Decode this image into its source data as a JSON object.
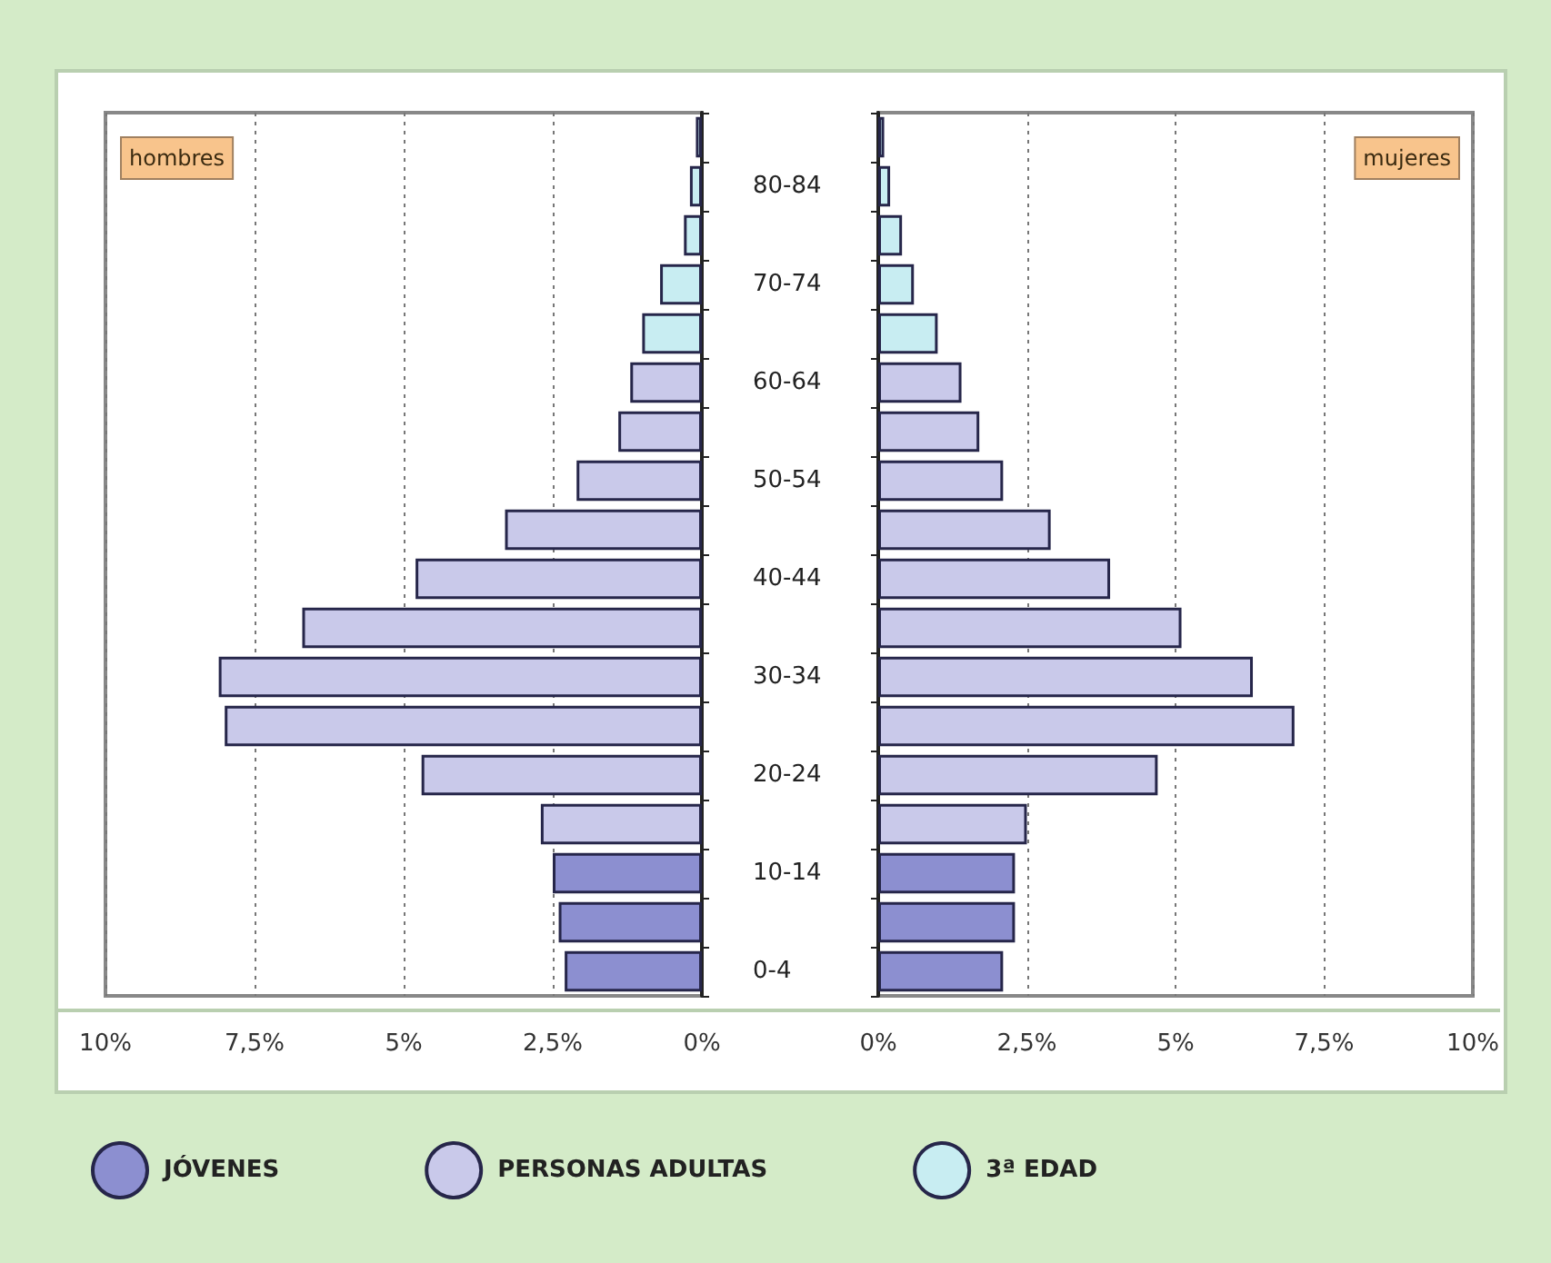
{
  "chart_data": [
    {
      "type": "bar",
      "orientation": "horizontal",
      "stacked": true,
      "grid": "x",
      "legend": "bottom",
      "annotations": [
        "hombres"
      ],
      "categories": [
        null,
        "80-84",
        null,
        "70-74",
        null,
        "60-64",
        null,
        "50-54",
        null,
        "40-44",
        null,
        "30-34",
        null,
        "20-24",
        null,
        "10-14",
        null,
        "0-4"
      ],
      "xlim": [
        10,
        0
      ],
      "xticks": [
        {
          "value": 10,
          "label": "10%"
        },
        {
          "value": 7.5,
          "label": "7,5%"
        },
        {
          "value": 5,
          "label": "5%"
        },
        {
          "value": 2.5,
          "label": "2,5%"
        },
        {
          "value": 0,
          "label": "0%"
        }
      ],
      "series": [
        {
          "name": "JÓVENES",
          "color": "#8c8fd0",
          "values": [
            null,
            null,
            null,
            null,
            null,
            null,
            null,
            null,
            null,
            null,
            null,
            null,
            null,
            null,
            null,
            2.5,
            2.4,
            2.3
          ]
        },
        {
          "name": "PERSONAS ADULTAS",
          "color": "#c9c9ea",
          "values": [
            null,
            null,
            null,
            null,
            null,
            1.2,
            1.4,
            2.1,
            3.3,
            4.8,
            6.7,
            8.1,
            8.0,
            4.7,
            2.7,
            null,
            null,
            null
          ]
        },
        {
          "name": "3ª EDAD",
          "color": "#c8edf2",
          "values": [
            0.1,
            0.2,
            0.3,
            0.7,
            1.0,
            null,
            null,
            null,
            null,
            null,
            null,
            null,
            null,
            null,
            null,
            null,
            null,
            null
          ]
        }
      ]
    },
    {
      "type": "bar",
      "orientation": "horizontal",
      "stacked": true,
      "grid": "x",
      "tick_labels": "x",
      "annotations": [
        "mujeres"
      ],
      "categories": [
        null,
        null,
        null,
        null,
        null,
        null,
        null,
        null,
        null,
        null,
        null,
        null,
        null,
        null,
        null,
        null,
        null,
        null
      ],
      "xlim": [
        0,
        10
      ],
      "xticks": [
        {
          "value": 0,
          "label": "0%"
        },
        {
          "value": 2.5,
          "label": "2,5%"
        },
        {
          "value": 5,
          "label": "5%"
        },
        {
          "value": 7.5,
          "label": "7,5%"
        },
        {
          "value": 10,
          "label": "10%"
        }
      ],
      "series": [
        {
          "color": "#8c8fd0",
          "values": [
            null,
            null,
            null,
            null,
            null,
            null,
            null,
            null,
            null,
            null,
            null,
            null,
            null,
            null,
            null,
            2.3,
            2.3,
            2.1
          ]
        },
        {
          "color": "#c9c9ea",
          "values": [
            null,
            null,
            null,
            null,
            null,
            1.4,
            1.7,
            2.1,
            2.9,
            3.9,
            5.1,
            6.3,
            7.0,
            4.7,
            2.5,
            null,
            null,
            null
          ]
        },
        {
          "color": "#c8edf2",
          "values": [
            0.1,
            0.2,
            0.4,
            0.6,
            1.0,
            null,
            null,
            null,
            null,
            null,
            null,
            null,
            null,
            null,
            null,
            null,
            null,
            null
          ]
        }
      ]
    }
  ]
}
